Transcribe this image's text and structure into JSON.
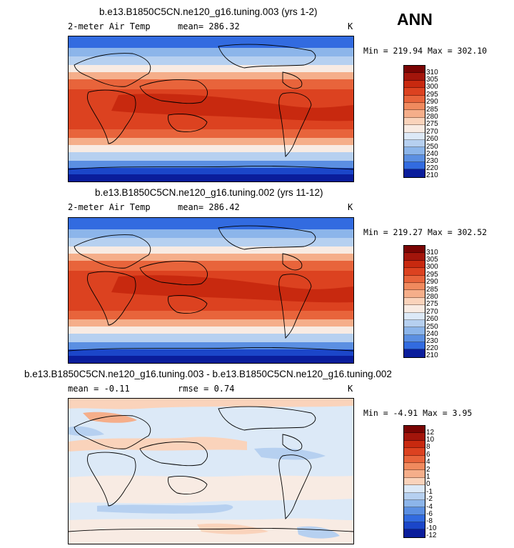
{
  "season_label": "ANN",
  "panels": [
    {
      "title": "b.e13.B1850C5CN.ne120_g16.tuning.003 (yrs 1-2)",
      "variable": "2-meter Air Temp",
      "stat_text": "mean= 286.32",
      "units": "K",
      "minmax": "Min = 219.94 Max = 302.10",
      "colorbar_labels": [
        "310",
        "305",
        "300",
        "295",
        "290",
        "285",
        "280",
        "275",
        "270",
        "260",
        "250",
        "240",
        "230",
        "220",
        "210"
      ]
    },
    {
      "title": "b.e13.B1850C5CN.ne120_g16.tuning.002 (yrs 11-12)",
      "variable": "2-meter Air Temp",
      "stat_text": "mean= 286.42",
      "units": "K",
      "minmax": "Min = 219.27 Max = 302.52",
      "colorbar_labels": [
        "310",
        "305",
        "300",
        "295",
        "290",
        "285",
        "280",
        "275",
        "270",
        "260",
        "250",
        "240",
        "230",
        "220",
        "210"
      ]
    },
    {
      "title": "b.e13.B1850C5CN.ne120_g16.tuning.003 - b.e13.B1850C5CN.ne120_g16.tuning.002",
      "stat_mean": "mean =  -0.11",
      "stat_rmse": "rmse =   0.74",
      "units": "K",
      "minmax": "Min =  -4.91 Max =   3.95",
      "colorbar_labels": [
        "12",
        "10",
        "8",
        "6",
        "4",
        "2",
        "1",
        "0",
        "-1",
        "-2",
        "-4",
        "-6",
        "-8",
        "-10",
        "-12"
      ]
    }
  ],
  "colors": {
    "temp_scale": [
      "#7a0403",
      "#a3150b",
      "#c8290f",
      "#dc4220",
      "#e8643b",
      "#f08a5e",
      "#f5ae8a",
      "#fad3bb",
      "#f8ebe3",
      "#dce9f7",
      "#b6d0f0",
      "#8cb5ea",
      "#5b8fe2",
      "#326be0",
      "#1b46c9",
      "#0a1d9b"
    ],
    "diff_scale": [
      "#7a0403",
      "#a3150b",
      "#c8290f",
      "#dc4220",
      "#e8643b",
      "#f08a5e",
      "#f5ae8a",
      "#fad3bb",
      "#f8ebe3",
      "#dce9f7",
      "#b6d0f0",
      "#8cb5ea",
      "#5b8fe2",
      "#326be0",
      "#1b46c9",
      "#0a1d9b"
    ]
  }
}
